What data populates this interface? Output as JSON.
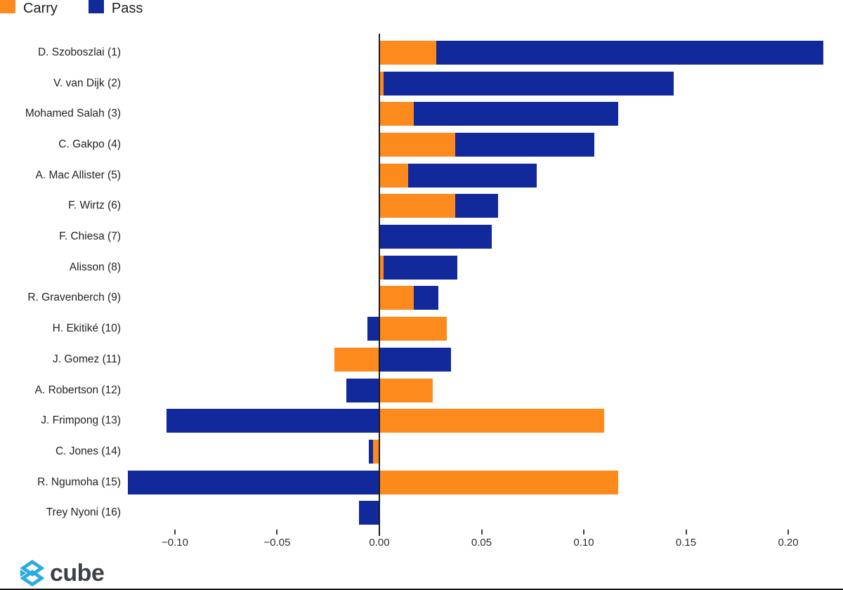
{
  "chart_data": {
    "type": "bar",
    "orientation": "horizontal",
    "barmode": "stacked-relative",
    "title": "",
    "xlabel": "",
    "ylabel": "",
    "grid": false,
    "zero_line": true,
    "legend_position": "top-left",
    "categories": [
      "D. Szoboszlai (1)",
      "V. van Dijk (2)",
      "Mohamed Salah (3)",
      "C. Gakpo (4)",
      "A. Mac Allister (5)",
      "F. Wirtz (6)",
      "F. Chiesa (7)",
      "Alisson (8)",
      "R. Gravenberch (9)",
      "H. Ekitiké (10)",
      "J. Gomez (11)",
      "A. Robertson (12)",
      "J. Frimpong (13)",
      "C. Jones (14)",
      "R. Ngumoha (15)",
      "Trey Nyoni (16)"
    ],
    "series": [
      {
        "name": "Carry",
        "color": "#FD8A1D",
        "values": [
          0.028,
          0.002,
          0.017,
          0.037,
          0.014,
          0.037,
          0.0,
          0.002,
          0.017,
          0.033,
          -0.022,
          0.026,
          0.11,
          -0.003,
          0.117,
          0.0
        ]
      },
      {
        "name": "Pass",
        "color": "#12299B",
        "values": [
          0.189,
          0.142,
          0.1,
          0.068,
          0.063,
          0.021,
          0.055,
          0.036,
          0.012,
          -0.006,
          0.035,
          -0.016,
          -0.104,
          -0.002,
          -0.123,
          -0.01
        ]
      }
    ],
    "xlim": [
      -0.123,
      0.2175
    ],
    "x_ticks": [
      {
        "value": -0.1,
        "label": "−0.10"
      },
      {
        "value": -0.05,
        "label": "−0.05"
      },
      {
        "value": 0.0,
        "label": "0.00"
      },
      {
        "value": 0.05,
        "label": "0.05"
      },
      {
        "value": 0.1,
        "label": "0.10"
      },
      {
        "value": 0.15,
        "label": "0.15"
      },
      {
        "value": 0.2,
        "label": "0.20"
      }
    ]
  },
  "footer": {
    "logo_text": "cube",
    "logo_color": "#29ABE2"
  }
}
